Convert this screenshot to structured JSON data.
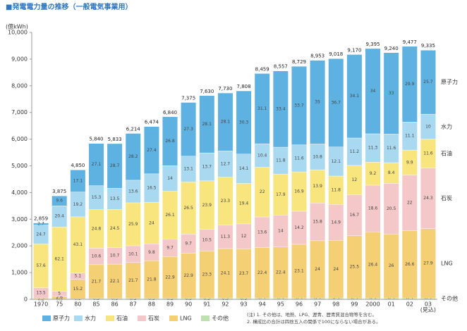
{
  "chart_data": {
    "type": "stacked-bar",
    "title": "■発電電力量の推移（一般電気事業用）",
    "y_unit": "(億kWh)",
    "categories": [
      "1970",
      "75",
      "80",
      "85",
      "86",
      "87",
      "88",
      "89",
      "90",
      "91",
      "92",
      "93",
      "94",
      "95",
      "96",
      "97",
      "98",
      "99",
      "2000",
      "01",
      "02",
      "03"
    ],
    "x_note": "(見込)",
    "ylim": [
      0,
      10000
    ],
    "yticks": [
      0,
      {
        "value": 1000,
        "label": "1,000"
      },
      {
        "value": 2000,
        "label": "2,000"
      },
      {
        "value": 3000,
        "label": "3,000"
      },
      {
        "value": 4000,
        "label": "4,000"
      },
      {
        "value": 5000,
        "label": "5,000"
      },
      {
        "value": 6000,
        "label": "6,000"
      },
      {
        "value": 7000,
        "label": "7,000"
      },
      {
        "value": 8000,
        "label": "8,000"
      },
      {
        "value": 9000,
        "label": "9,000"
      },
      {
        "value": 10000,
        "label": "10,000"
      }
    ],
    "totals": {
      "values": [
        2859,
        3875,
        4850,
        5840,
        5833,
        6214,
        6474,
        6840,
        7375,
        7630,
        7730,
        7808,
        8459,
        8557,
        8729,
        8953,
        9018,
        9170,
        9395,
        9240,
        9477,
        9335
      ],
      "value_labels": [
        "2,859",
        "3,875",
        "4,850",
        "5,840",
        "5,833",
        "6,214",
        "6,474",
        "6,840",
        "7,375",
        "7,630",
        "7,730",
        "7,808",
        "8,459",
        "8,557",
        "8,729",
        "8,953",
        "9,018",
        "9,170",
        "9,395",
        "9,240",
        "9,477",
        "9,335"
      ]
    },
    "series": [
      {
        "name": "その他",
        "color": "#bfe0b0",
        "values": [
          0.2,
          0.3,
          0.3,
          0.5,
          0.5,
          0.5,
          0.5,
          0.5,
          0.5,
          0.5,
          0.5,
          0.5,
          0.5,
          0.5,
          0.5,
          0.5,
          0.5,
          0.5,
          0.5,
          0.5,
          0.5,
          0.5
        ]
      },
      {
        "name": "LNG",
        "color": "#f5cf74",
        "values": [
          1.3,
          2.6,
          15.2,
          21.7,
          22.1,
          21.7,
          21.8,
          22.9,
          22.9,
          23.3,
          24.1,
          23.7,
          22.4,
          22.4,
          23.1,
          24.0,
          24.0,
          25.5,
          26.4,
          26.0,
          26.6,
          27.9
        ]
      },
      {
        "name": "石炭",
        "color": "#f4c8c8",
        "values": [
          13.5,
          5.0,
          5.1,
          10.6,
          10.7,
          10.1,
          9.8,
          9.7,
          9.7,
          10.5,
          11.3,
          12.0,
          13.6,
          14.0,
          14.2,
          15.8,
          14.9,
          16.7,
          18.6,
          20.5,
          22.0,
          24.3
        ]
      },
      {
        "name": "石油",
        "color": "#f8e57e",
        "values": [
          57.6,
          62.1,
          43.1,
          24.8,
          24.5,
          25.9,
          24.0,
          26.1,
          26.5,
          23.9,
          23.3,
          19.4,
          22.0,
          17.9,
          16.9,
          13.9,
          11.8,
          12.0,
          9.2,
          8.4,
          9.9,
          11.6
        ]
      },
      {
        "name": "水力",
        "color": "#a9d9f0",
        "values": [
          24.7,
          20.4,
          19.2,
          15.3,
          13.5,
          13.6,
          16.5,
          14.0,
          13.1,
          13.7,
          12.7,
          14.1,
          10.4,
          11.8,
          11.6,
          10.8,
          12.1,
          11.2,
          11.3,
          11.6,
          11.1,
          10.0
        ]
      },
      {
        "name": "原子力",
        "color": "#5eb2e2",
        "values": [
          2.7,
          9.6,
          17.1,
          27.1,
          28.7,
          28.2,
          27.4,
          26.8,
          27.3,
          28.1,
          28.1,
          30.3,
          31.1,
          33.4,
          33.7,
          35.0,
          36.7,
          34.1,
          34.0,
          33.0,
          29.9,
          25.7
        ]
      }
    ],
    "notes": [
      "(注) 1. その他は、地熱、LPG、瀝青、歴青質混合物等を含む。",
      "2. 構成比の合計は四捨五入の関係で100にならない場合がある。"
    ]
  }
}
